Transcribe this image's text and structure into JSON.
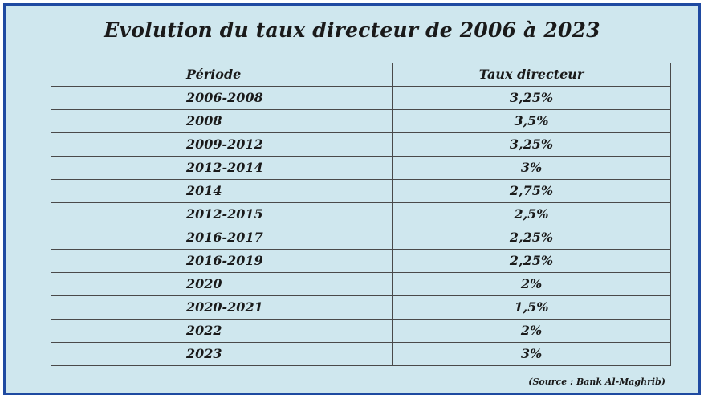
{
  "title": "Evolution du taux directeur de 2006 à 2023",
  "table": {
    "headers": {
      "period": "Période",
      "rate": "Taux directeur"
    },
    "rows": [
      {
        "period": "2006-2008",
        "rate": "3,25%"
      },
      {
        "period": "2008",
        "rate": "3,5%"
      },
      {
        "period": "2009-2012",
        "rate": "3,25%"
      },
      {
        "period": "2012-2014",
        "rate": "3%"
      },
      {
        "period": "2014",
        "rate": "2,75%"
      },
      {
        "period": "2012-2015",
        "rate": "2,5%"
      },
      {
        "period": "2016-2017",
        "rate": "2,25%"
      },
      {
        "period": "2016-2019",
        "rate": "2,25%"
      },
      {
        "period": "2020",
        "rate": "2%"
      },
      {
        "period": "2020-2021",
        "rate": "1,5%"
      },
      {
        "period": "2022",
        "rate": "2%"
      },
      {
        "period": "2023",
        "rate": "3%"
      }
    ]
  },
  "source": "(Source : Bank Al-Maghrib)",
  "colors": {
    "background": "#cfe7ee",
    "border": "#1f4aa1"
  }
}
